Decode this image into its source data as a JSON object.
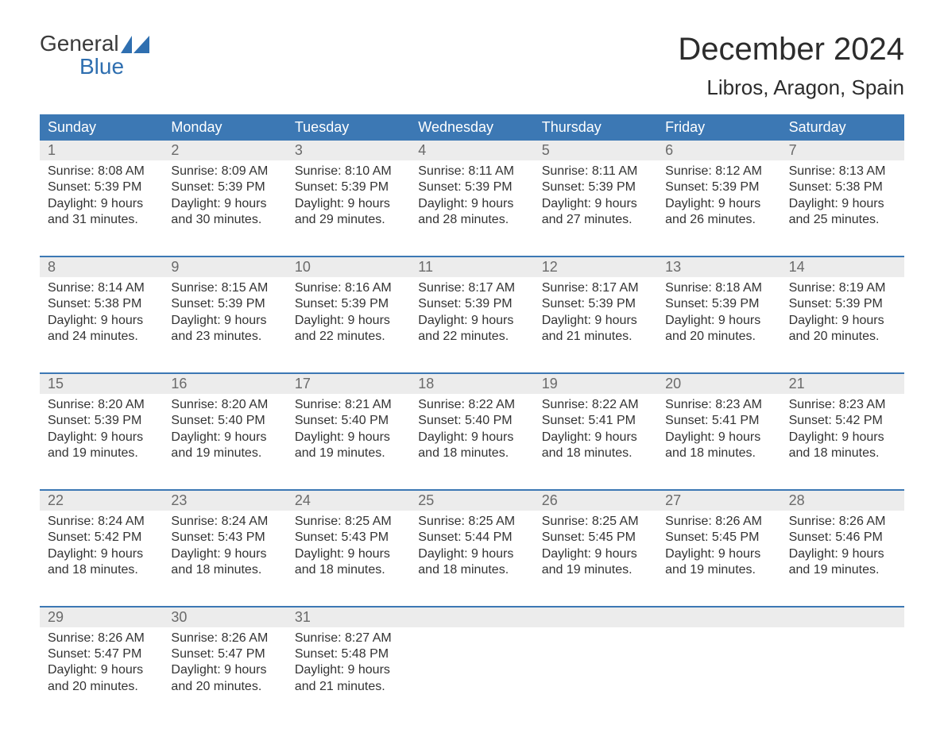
{
  "logo": {
    "line1": "General",
    "line2": "Blue",
    "sail_color": "#2f6fb0"
  },
  "title": "December 2024",
  "location": "Libros, Aragon, Spain",
  "colors": {
    "header_bg": "#3c78b4",
    "header_text": "#ffffff",
    "daynum_bg": "#ececec",
    "daynum_text": "#6a6a6a",
    "body_text": "#333333",
    "week_divider": "#3c78b4",
    "background": "#ffffff"
  },
  "typography": {
    "title_fontsize": 40,
    "location_fontsize": 26,
    "header_fontsize": 18,
    "daynum_fontsize": 18,
    "cell_fontsize": 16
  },
  "day_headers": [
    "Sunday",
    "Monday",
    "Tuesday",
    "Wednesday",
    "Thursday",
    "Friday",
    "Saturday"
  ],
  "weeks": [
    [
      {
        "n": "1",
        "sunrise": "Sunrise: 8:08 AM",
        "sunset": "Sunset: 5:39 PM",
        "d1": "Daylight: 9 hours",
        "d2": "and 31 minutes."
      },
      {
        "n": "2",
        "sunrise": "Sunrise: 8:09 AM",
        "sunset": "Sunset: 5:39 PM",
        "d1": "Daylight: 9 hours",
        "d2": "and 30 minutes."
      },
      {
        "n": "3",
        "sunrise": "Sunrise: 8:10 AM",
        "sunset": "Sunset: 5:39 PM",
        "d1": "Daylight: 9 hours",
        "d2": "and 29 minutes."
      },
      {
        "n": "4",
        "sunrise": "Sunrise: 8:11 AM",
        "sunset": "Sunset: 5:39 PM",
        "d1": "Daylight: 9 hours",
        "d2": "and 28 minutes."
      },
      {
        "n": "5",
        "sunrise": "Sunrise: 8:11 AM",
        "sunset": "Sunset: 5:39 PM",
        "d1": "Daylight: 9 hours",
        "d2": "and 27 minutes."
      },
      {
        "n": "6",
        "sunrise": "Sunrise: 8:12 AM",
        "sunset": "Sunset: 5:39 PM",
        "d1": "Daylight: 9 hours",
        "d2": "and 26 minutes."
      },
      {
        "n": "7",
        "sunrise": "Sunrise: 8:13 AM",
        "sunset": "Sunset: 5:38 PM",
        "d1": "Daylight: 9 hours",
        "d2": "and 25 minutes."
      }
    ],
    [
      {
        "n": "8",
        "sunrise": "Sunrise: 8:14 AM",
        "sunset": "Sunset: 5:38 PM",
        "d1": "Daylight: 9 hours",
        "d2": "and 24 minutes."
      },
      {
        "n": "9",
        "sunrise": "Sunrise: 8:15 AM",
        "sunset": "Sunset: 5:39 PM",
        "d1": "Daylight: 9 hours",
        "d2": "and 23 minutes."
      },
      {
        "n": "10",
        "sunrise": "Sunrise: 8:16 AM",
        "sunset": "Sunset: 5:39 PM",
        "d1": "Daylight: 9 hours",
        "d2": "and 22 minutes."
      },
      {
        "n": "11",
        "sunrise": "Sunrise: 8:17 AM",
        "sunset": "Sunset: 5:39 PM",
        "d1": "Daylight: 9 hours",
        "d2": "and 22 minutes."
      },
      {
        "n": "12",
        "sunrise": "Sunrise: 8:17 AM",
        "sunset": "Sunset: 5:39 PM",
        "d1": "Daylight: 9 hours",
        "d2": "and 21 minutes."
      },
      {
        "n": "13",
        "sunrise": "Sunrise: 8:18 AM",
        "sunset": "Sunset: 5:39 PM",
        "d1": "Daylight: 9 hours",
        "d2": "and 20 minutes."
      },
      {
        "n": "14",
        "sunrise": "Sunrise: 8:19 AM",
        "sunset": "Sunset: 5:39 PM",
        "d1": "Daylight: 9 hours",
        "d2": "and 20 minutes."
      }
    ],
    [
      {
        "n": "15",
        "sunrise": "Sunrise: 8:20 AM",
        "sunset": "Sunset: 5:39 PM",
        "d1": "Daylight: 9 hours",
        "d2": "and 19 minutes."
      },
      {
        "n": "16",
        "sunrise": "Sunrise: 8:20 AM",
        "sunset": "Sunset: 5:40 PM",
        "d1": "Daylight: 9 hours",
        "d2": "and 19 minutes."
      },
      {
        "n": "17",
        "sunrise": "Sunrise: 8:21 AM",
        "sunset": "Sunset: 5:40 PM",
        "d1": "Daylight: 9 hours",
        "d2": "and 19 minutes."
      },
      {
        "n": "18",
        "sunrise": "Sunrise: 8:22 AM",
        "sunset": "Sunset: 5:40 PM",
        "d1": "Daylight: 9 hours",
        "d2": "and 18 minutes."
      },
      {
        "n": "19",
        "sunrise": "Sunrise: 8:22 AM",
        "sunset": "Sunset: 5:41 PM",
        "d1": "Daylight: 9 hours",
        "d2": "and 18 minutes."
      },
      {
        "n": "20",
        "sunrise": "Sunrise: 8:23 AM",
        "sunset": "Sunset: 5:41 PM",
        "d1": "Daylight: 9 hours",
        "d2": "and 18 minutes."
      },
      {
        "n": "21",
        "sunrise": "Sunrise: 8:23 AM",
        "sunset": "Sunset: 5:42 PM",
        "d1": "Daylight: 9 hours",
        "d2": "and 18 minutes."
      }
    ],
    [
      {
        "n": "22",
        "sunrise": "Sunrise: 8:24 AM",
        "sunset": "Sunset: 5:42 PM",
        "d1": "Daylight: 9 hours",
        "d2": "and 18 minutes."
      },
      {
        "n": "23",
        "sunrise": "Sunrise: 8:24 AM",
        "sunset": "Sunset: 5:43 PM",
        "d1": "Daylight: 9 hours",
        "d2": "and 18 minutes."
      },
      {
        "n": "24",
        "sunrise": "Sunrise: 8:25 AM",
        "sunset": "Sunset: 5:43 PM",
        "d1": "Daylight: 9 hours",
        "d2": "and 18 minutes."
      },
      {
        "n": "25",
        "sunrise": "Sunrise: 8:25 AM",
        "sunset": "Sunset: 5:44 PM",
        "d1": "Daylight: 9 hours",
        "d2": "and 18 minutes."
      },
      {
        "n": "26",
        "sunrise": "Sunrise: 8:25 AM",
        "sunset": "Sunset: 5:45 PM",
        "d1": "Daylight: 9 hours",
        "d2": "and 19 minutes."
      },
      {
        "n": "27",
        "sunrise": "Sunrise: 8:26 AM",
        "sunset": "Sunset: 5:45 PM",
        "d1": "Daylight: 9 hours",
        "d2": "and 19 minutes."
      },
      {
        "n": "28",
        "sunrise": "Sunrise: 8:26 AM",
        "sunset": "Sunset: 5:46 PM",
        "d1": "Daylight: 9 hours",
        "d2": "and 19 minutes."
      }
    ],
    [
      {
        "n": "29",
        "sunrise": "Sunrise: 8:26 AM",
        "sunset": "Sunset: 5:47 PM",
        "d1": "Daylight: 9 hours",
        "d2": "and 20 minutes."
      },
      {
        "n": "30",
        "sunrise": "Sunrise: 8:26 AM",
        "sunset": "Sunset: 5:47 PM",
        "d1": "Daylight: 9 hours",
        "d2": "and 20 minutes."
      },
      {
        "n": "31",
        "sunrise": "Sunrise: 8:27 AM",
        "sunset": "Sunset: 5:48 PM",
        "d1": "Daylight: 9 hours",
        "d2": "and 21 minutes."
      },
      null,
      null,
      null,
      null
    ]
  ]
}
